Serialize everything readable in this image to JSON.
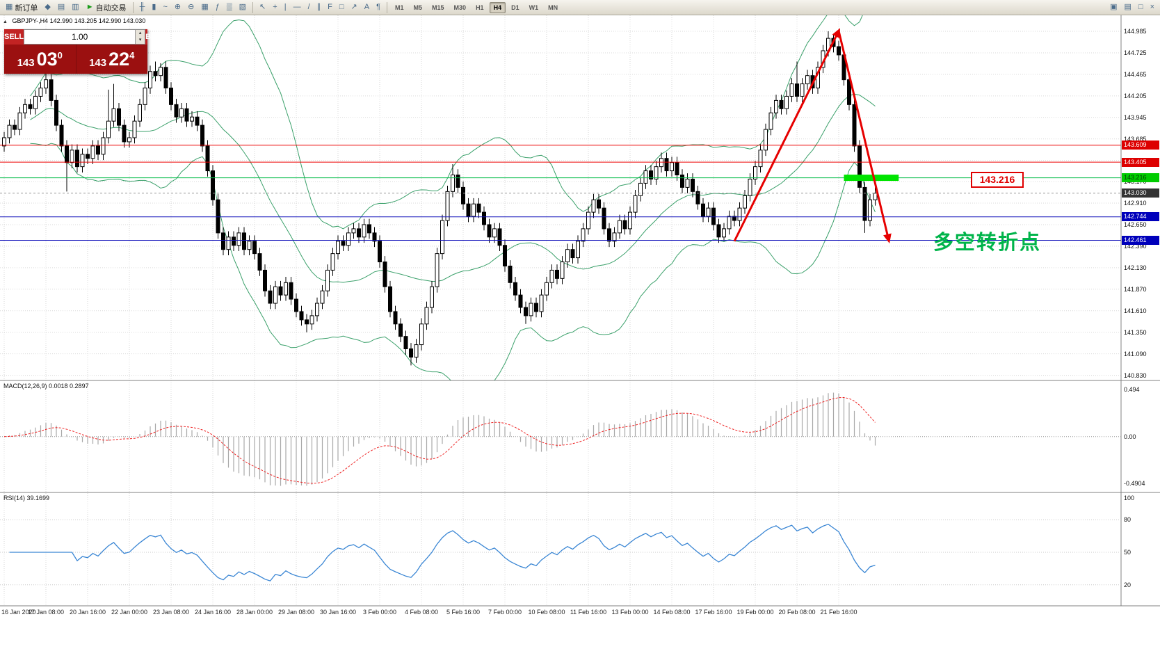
{
  "toolbar": {
    "groups": [
      {
        "items": [
          {
            "name": "new-order",
            "icon": "▦",
            "label": "新订单"
          },
          {
            "name": "market-watch",
            "icon": "◆"
          },
          {
            "name": "chart-windows",
            "icon": "▤"
          },
          {
            "name": "navigator",
            "icon": "▥"
          },
          {
            "name": "auto-trading",
            "icon": "►",
            "label": "自动交易",
            "icon_class": "green"
          }
        ]
      },
      {
        "items": [
          {
            "name": "bar-chart",
            "icon": "╫"
          },
          {
            "name": "candlestick-chart",
            "icon": "▮"
          },
          {
            "name": "line-chart",
            "icon": "~"
          },
          {
            "name": "zoom-in",
            "icon": "⊕"
          },
          {
            "name": "zoom-out",
            "icon": "⊖"
          },
          {
            "name": "tile-windows",
            "icon": "▦"
          },
          {
            "name": "indicators",
            "icon": "ƒ"
          },
          {
            "name": "periods",
            "icon": "▒"
          },
          {
            "name": "templates",
            "icon": "▧"
          }
        ]
      },
      {
        "items": [
          {
            "name": "cursor",
            "icon": "↖"
          },
          {
            "name": "crosshair",
            "icon": "+"
          },
          {
            "name": "vertical-line",
            "icon": "|"
          },
          {
            "name": "horizontal-line",
            "icon": "—"
          },
          {
            "name": "trendline",
            "icon": "/"
          },
          {
            "name": "equidistant-channel",
            "icon": "∥"
          },
          {
            "name": "fibonacci",
            "icon": "F"
          },
          {
            "name": "shapes",
            "icon": "□"
          },
          {
            "name": "arrows",
            "icon": "↗"
          },
          {
            "name": "text",
            "icon": "A"
          },
          {
            "name": "label",
            "icon": "¶"
          }
        ]
      }
    ],
    "timeframes": [
      "M1",
      "M5",
      "M15",
      "M30",
      "H1",
      "H4",
      "D1",
      "W1",
      "MN"
    ],
    "active_timeframe": "H4",
    "right_icons": [
      {
        "name": "cascade-windows",
        "icon": "▣"
      },
      {
        "name": "arrange-windows",
        "icon": "▤"
      }
    ],
    "window_controls": [
      {
        "name": "window-restore",
        "icon": "□"
      },
      {
        "name": "window-close",
        "icon": "×"
      }
    ]
  },
  "chart_header": {
    "expander": "▲",
    "title": "GBPJPY-,H4",
    "ohlc": "142.990 143.205 142.990 143.030"
  },
  "trade_panel": {
    "sell_label": "SELL",
    "buy_label": "BUY",
    "volume": "1.00",
    "spin_up": "▴",
    "spin_down": "▾",
    "sell_price": {
      "big": "143",
      "pips": "03",
      "sup": "0"
    },
    "buy_price": {
      "big": "143",
      "pips": "22",
      "sup": "4"
    }
  },
  "annotation": {
    "text": "多空转折点",
    "color": "#00b44a"
  },
  "callout": {
    "text": "143.216"
  },
  "price_axis": {
    "labels": [
      "144.985",
      "144.725",
      "144.465",
      "144.205",
      "143.945",
      "143.685",
      "143.425",
      "143.170",
      "142.910",
      "142.650",
      "142.390",
      "142.130",
      "141.870",
      "141.610",
      "141.350",
      "141.090",
      "140.830"
    ],
    "tags": [
      {
        "text": "143.609",
        "price": 143.609,
        "bg": "#dd0000",
        "fg": "#ffffff"
      },
      {
        "text": "143.405",
        "price": 143.405,
        "bg": "#dd0000",
        "fg": "#ffffff"
      },
      {
        "text": "143.216",
        "price": 143.216,
        "bg": "#00cc00",
        "fg": "#073b07"
      },
      {
        "text": "143.030",
        "price": 143.03,
        "bg": "#333333",
        "fg": "#ffffff"
      },
      {
        "text": "142.744",
        "price": 142.744,
        "bg": "#0000bb",
        "fg": "#ffffff"
      },
      {
        "text": "142.461",
        "price": 142.461,
        "bg": "#0000bb",
        "fg": "#ffffff"
      }
    ]
  },
  "hlines": [
    {
      "price": 143.609,
      "color": "#ee0000",
      "width": 1
    },
    {
      "price": 143.405,
      "color": "#ee0000",
      "width": 1
    },
    {
      "price": 143.216,
      "color": "#00bb44",
      "width": 1
    },
    {
      "price": 143.03,
      "color": "#999999",
      "width": 1,
      "dash": "3,3"
    },
    {
      "price": 142.744,
      "color": "#1414bb",
      "width": 1
    },
    {
      "price": 142.461,
      "color": "#1414bb",
      "width": 1
    }
  ],
  "macd": {
    "label": "MACD(12,26,9) 0.0018 0.2897",
    "axis": [
      "0.494",
      "0.00",
      "-0.4904"
    ]
  },
  "rsi": {
    "label": "RSI(14) 39.1699",
    "axis": [
      "100",
      "80",
      "50",
      "20"
    ],
    "levels": [
      80,
      50,
      20
    ]
  },
  "time_axis": [
    "16 Jan 2020",
    "17 Jan 08:00",
    "20 Jan 16:00",
    "22 Jan 00:00",
    "23 Jan 08:00",
    "24 Jan 16:00",
    "28 Jan 00:00",
    "29 Jan 08:00",
    "30 Jan 16:00",
    "3 Feb 00:00",
    "4 Feb 08:00",
    "5 Feb 16:00",
    "7 Feb 00:00",
    "10 Feb 08:00",
    "11 Feb 16:00",
    "13 Feb 00:00",
    "14 Feb 08:00",
    "17 Feb 16:00",
    "19 Feb 00:00",
    "20 Feb 08:00",
    "21 Feb 16:00"
  ],
  "colors": {
    "bollinger_green": "#3aa06a",
    "grid": "#d9d9d9",
    "separator": "#808080",
    "macd_hist": "#a8a8a8",
    "macd_signal_red": "#ee2222",
    "rsi_blue": "#3a86d4",
    "arrow_red": "#e60000",
    "highlight_green": "#00e400",
    "bull_fill": "#ffffff",
    "bear_fill": "#000000",
    "candle_stroke": "#000000"
  },
  "chart_data": {
    "type": "candlestick+indicators",
    "symbol": "GBPJPY-",
    "timeframe": "H4",
    "price_range": [
      140.83,
      144.985
    ],
    "first_open": 143.6,
    "default_wick": 0.07,
    "closes": [
      143.7,
      143.85,
      143.8,
      144.0,
      144.1,
      144.05,
      144.2,
      144.3,
      144.4,
      144.15,
      143.85,
      143.6,
      143.4,
      143.55,
      143.35,
      143.5,
      143.45,
      143.6,
      143.5,
      143.7,
      143.9,
      144.05,
      143.85,
      143.65,
      143.7,
      143.9,
      144.1,
      144.3,
      144.5,
      144.45,
      144.55,
      144.3,
      144.1,
      143.95,
      144.05,
      143.9,
      143.95,
      143.85,
      143.6,
      143.3,
      142.95,
      142.55,
      142.35,
      142.5,
      142.4,
      142.55,
      142.35,
      142.45,
      142.3,
      142.1,
      141.85,
      141.7,
      141.9,
      141.8,
      141.95,
      141.75,
      141.6,
      141.5,
      141.45,
      141.55,
      141.7,
      141.85,
      142.1,
      142.3,
      142.45,
      142.4,
      142.55,
      142.6,
      142.5,
      142.65,
      142.55,
      142.45,
      142.2,
      141.9,
      141.6,
      141.45,
      141.3,
      141.15,
      141.05,
      141.2,
      141.45,
      141.65,
      141.9,
      142.3,
      142.7,
      143.05,
      143.25,
      143.1,
      142.9,
      142.75,
      142.9,
      142.8,
      142.65,
      142.5,
      142.6,
      142.4,
      142.15,
      141.95,
      141.8,
      141.65,
      141.55,
      141.7,
      141.6,
      141.8,
      141.95,
      142.1,
      142.0,
      142.2,
      142.35,
      142.25,
      142.45,
      142.6,
      142.8,
      142.95,
      142.85,
      142.6,
      142.45,
      142.55,
      142.7,
      142.6,
      142.8,
      143.0,
      143.15,
      143.3,
      143.2,
      143.35,
      143.45,
      143.3,
      143.4,
      143.25,
      143.1,
      143.2,
      143.05,
      142.9,
      142.75,
      142.85,
      142.65,
      142.5,
      142.6,
      142.75,
      142.7,
      142.85,
      143.0,
      143.2,
      143.35,
      143.55,
      143.8,
      144.0,
      144.15,
      144.05,
      144.2,
      144.35,
      144.2,
      144.35,
      144.45,
      144.3,
      144.55,
      144.75,
      144.9,
      144.8,
      144.7,
      144.4,
      144.1,
      143.6,
      143.1,
      142.7,
      142.95,
      143.03
    ],
    "extremes": {
      "8": [
        144.5,
        null
      ],
      "12": [
        null,
        143.05
      ],
      "20": [
        144.28,
        null
      ],
      "21": [
        144.35,
        null
      ],
      "29": [
        144.62,
        null
      ],
      "30": [
        144.6,
        null
      ],
      "58": [
        null,
        141.35
      ],
      "59": [
        null,
        141.38
      ],
      "78": [
        null,
        140.95
      ],
      "86": [
        143.38,
        null
      ],
      "100": [
        null,
        141.45
      ],
      "113": [
        143.02,
        null
      ],
      "126": [
        143.52,
        null
      ],
      "138": [
        null,
        142.45
      ],
      "152": [
        144.62,
        null
      ],
      "158": [
        144.985,
        null
      ],
      "159": [
        144.95,
        null
      ],
      "165": [
        null,
        142.55
      ]
    },
    "overlays": {
      "bollinger": {
        "period": 20,
        "deviation": 2
      }
    },
    "indicators": {
      "macd": {
        "fast": 12,
        "slow": 26,
        "signal": 9,
        "values_label": [
          0.0018,
          0.2897
        ],
        "axis_range": [
          -0.4904,
          0.494
        ]
      },
      "rsi": {
        "period": 14,
        "current": 39.1699,
        "axis_range": [
          0,
          100
        ]
      }
    },
    "trend_arrow": {
      "points": [
        [
          140,
          142.45
        ],
        [
          160,
          144.99
        ],
        [
          169.6,
          142.46
        ]
      ]
    },
    "highlight_bar": {
      "from_idx": 161,
      "to_idx": 171.5,
      "price": 143.216,
      "thickness": 9
    }
  }
}
